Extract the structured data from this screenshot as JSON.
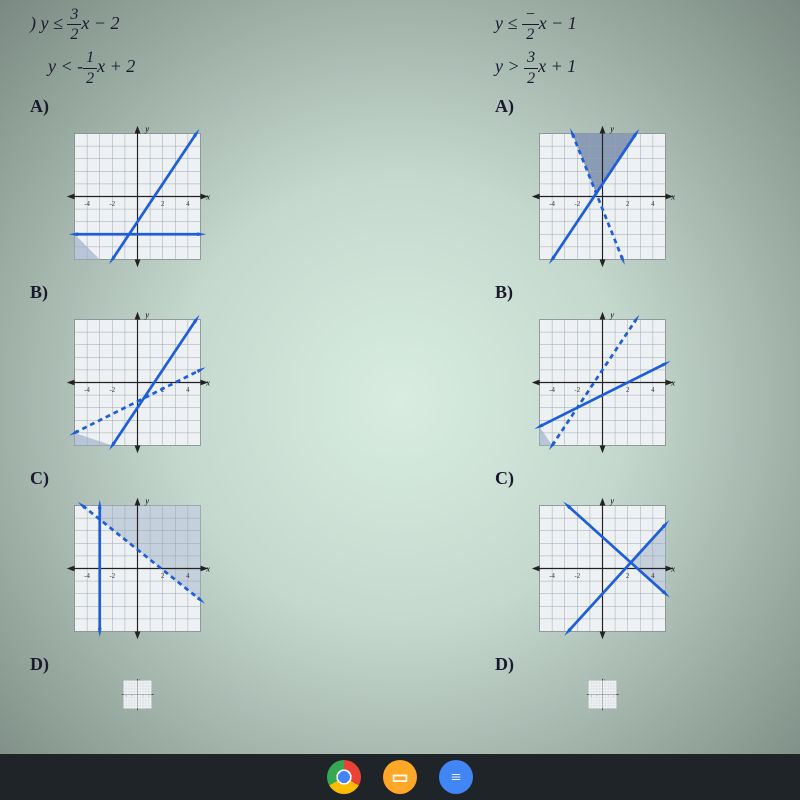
{
  "left": {
    "equations": [
      {
        "prefix": ") ",
        "lhs": "y ≤ ",
        "num": "3",
        "den": "2",
        "mid": "x − 2"
      },
      {
        "prefix": "",
        "lhs": "y < ",
        "dash": "-",
        "num": "1",
        "den": "2",
        "mid": "x + 2"
      }
    ],
    "choices": [
      "A)",
      "B)",
      "C)",
      "D)"
    ],
    "charts": {
      "A": {
        "type": "inequality-graph",
        "xlim": [
          -5,
          5
        ],
        "ylim": [
          -5,
          5
        ],
        "line1": {
          "m": 1.5,
          "b": -2,
          "dashed": false,
          "color": "#1e5fd9"
        },
        "line2": {
          "m": 0,
          "b": -3,
          "dashed": false,
          "color": "#1e5fd9"
        },
        "shade_poly": [
          [
            -5,
            -5
          ],
          [
            -3,
            -5
          ],
          [
            -5,
            -3
          ]
        ],
        "shade_color": "#b8c5d8",
        "grid_color": "#9aa5b0",
        "bg": "#eef1f3"
      },
      "B": {
        "type": "inequality-graph",
        "xlim": [
          -5,
          5
        ],
        "ylim": [
          -5,
          5
        ],
        "line1": {
          "m": 1.5,
          "b": -2,
          "dashed": false,
          "color": "#1e5fd9"
        },
        "line2": {
          "m": 0.5,
          "b": -1.5,
          "dashed": true,
          "color": "#1e5fd9"
        },
        "shade_poly": [
          [
            -5,
            -5
          ],
          [
            -2,
            -5
          ],
          [
            -5,
            -4
          ]
        ],
        "shade_color": "#b8c5d8",
        "grid_color": "#9aa5b0",
        "bg": "#eef1f3"
      },
      "C": {
        "type": "inequality-graph",
        "xlim": [
          -5,
          5
        ],
        "ylim": [
          -5,
          5
        ],
        "line1": {
          "pts": [
            [
              -3,
              5
            ],
            [
              -3,
              -5
            ]
          ],
          "dashed": false,
          "color": "#1e5fd9"
        },
        "line2": {
          "m": -0.8,
          "b": 1.5,
          "dashed": true,
          "color": "#1e5fd9"
        },
        "shade_poly": [
          [
            -3,
            5
          ],
          [
            5,
            5
          ],
          [
            5,
            -2.5
          ],
          [
            -3,
            3.9
          ]
        ],
        "shade_color": "#c5d0dd",
        "grid_color": "#9aa5b0",
        "bg": "#eef1f3"
      },
      "D": {
        "type": "inequality-graph",
        "xlim": [
          -5,
          5
        ],
        "ylim": [
          -5,
          5
        ],
        "partial": true,
        "grid_color": "#9aa5b0",
        "bg": "#eef1f3"
      }
    }
  },
  "right": {
    "equations": [
      {
        "prefix": "",
        "lhs": "y ≤ ",
        "dash": "−",
        "num": "",
        "den": "2",
        "mid": "x − 1",
        "neg": true
      },
      {
        "prefix": "",
        "lhs": "y > ",
        "num": "3",
        "den": "2",
        "mid": "x + 1"
      }
    ],
    "choices": [
      "A)",
      "B)",
      "C)",
      "D)"
    ],
    "charts": {
      "A": {
        "type": "inequality-graph",
        "xlim": [
          -5,
          5
        ],
        "ylim": [
          -5,
          5
        ],
        "line1": {
          "m": -2.5,
          "b": -1,
          "dashed": true,
          "color": "#1e5fd9"
        },
        "line2": {
          "m": 1.5,
          "b": 1,
          "dashed": false,
          "color": "#1e5fd9"
        },
        "shade_poly": [
          [
            -2.4,
            5
          ],
          [
            2.67,
            5
          ],
          [
            -0.5,
            0.25
          ]
        ],
        "shade_color": "#8a9bb5",
        "grid_color": "#9aa5b0",
        "bg": "#eef1f3"
      },
      "B": {
        "type": "inequality-graph",
        "xlim": [
          -5,
          5
        ],
        "ylim": [
          -5,
          5
        ],
        "line1": {
          "m": 1.5,
          "b": 1,
          "dashed": true,
          "color": "#1e5fd9"
        },
        "line2": {
          "m": 0.5,
          "b": -1,
          "dashed": false,
          "color": "#1e5fd9"
        },
        "shade_poly": [
          [
            -5,
            -5
          ],
          [
            -4,
            -5
          ],
          [
            -5,
            -3.5
          ]
        ],
        "shade_color": "#b8c5d8",
        "grid_color": "#9aa5b0",
        "bg": "#eef1f3"
      },
      "C": {
        "type": "inequality-graph",
        "xlim": [
          -5,
          5
        ],
        "ylim": [
          -5,
          5
        ],
        "line1": {
          "m": -0.9,
          "b": 2.5,
          "dashed": false,
          "color": "#1e5fd9"
        },
        "line2": {
          "m": 1.1,
          "b": -2,
          "dashed": false,
          "color": "#1e5fd9"
        },
        "shade_poly": [
          [
            2.25,
            0.47
          ],
          [
            5,
            3.5
          ],
          [
            5,
            -2
          ]
        ],
        "shade_color": "#c5d0dd",
        "grid_color": "#9aa5b0",
        "bg": "#eef1f3"
      },
      "D": {
        "type": "inequality-graph",
        "xlim": [
          -5,
          5
        ],
        "ylim": [
          -5,
          5
        ],
        "partial": true,
        "grid_color": "#9aa5b0",
        "bg": "#eef1f3"
      }
    }
  },
  "axis_labels": {
    "x": "x",
    "y": "y"
  },
  "axis_ticks": [
    -4,
    -2,
    2,
    4
  ],
  "taskbar": {
    "icons": [
      {
        "name": "chrome",
        "label": ""
      },
      {
        "name": "classroom",
        "label": "▭"
      },
      {
        "name": "docs",
        "label": "≡"
      }
    ]
  }
}
